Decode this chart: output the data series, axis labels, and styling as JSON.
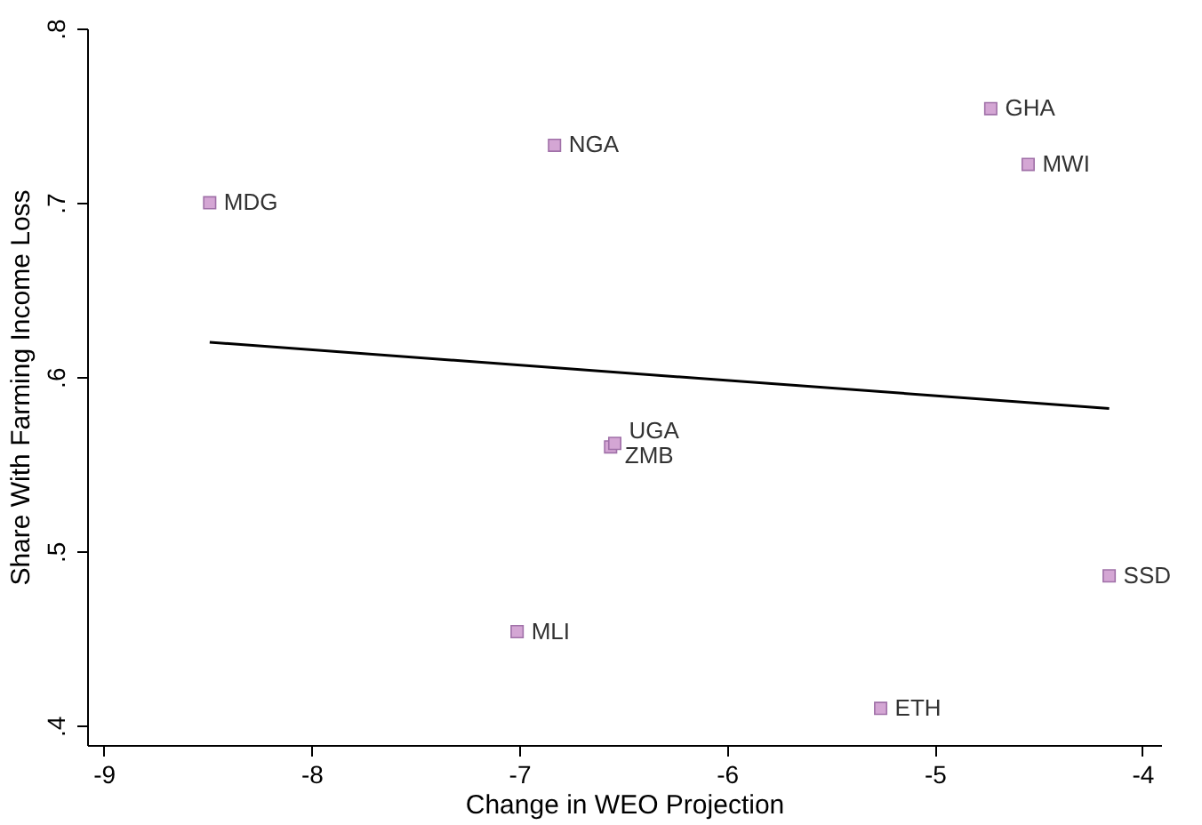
{
  "chart_data": {
    "type": "scatter",
    "xlabel": "Change in WEO Projection",
    "ylabel": "Share With Farming Income Loss",
    "xlim": [
      -9.08,
      -3.91
    ],
    "ylim": [
      0.389,
      0.8
    ],
    "xticks": [
      -9,
      -8,
      -7,
      -6,
      -5,
      -4
    ],
    "yticks": [
      {
        "value": 0.4,
        "label": ".4"
      },
      {
        "value": 0.5,
        "label": ".5"
      },
      {
        "value": 0.6,
        "label": ".6"
      },
      {
        "value": 0.7,
        "label": ".7"
      },
      {
        "value": 0.8,
        "label": ".8"
      }
    ],
    "grid": false,
    "series": [
      {
        "type": "scatter",
        "marker": "square",
        "color": "#d4a6d4",
        "x": [
          -8.49,
          -6.83,
          -4.73,
          -4.55,
          -6.56,
          -6.54,
          -4.16,
          -7.01,
          -5.26
        ],
        "values": [
          0.7,
          0.733,
          0.754,
          0.722,
          0.56,
          0.562,
          0.486,
          0.454,
          0.41
        ]
      },
      {
        "type": "line",
        "marker": "none",
        "line_style": "solid",
        "color": "#000000",
        "x": [
          -8.49,
          -4.16
        ],
        "values": [
          0.62,
          0.582
        ]
      }
    ],
    "annotations": [
      {
        "text": "MDG",
        "x": -8.49,
        "y": 0.7
      },
      {
        "text": "NGA",
        "x": -6.83,
        "y": 0.733
      },
      {
        "text": "GHA",
        "x": -4.73,
        "y": 0.754
      },
      {
        "text": "MWI",
        "x": -4.55,
        "y": 0.722
      },
      {
        "text": "ZMB",
        "x": -6.56,
        "y": 0.56
      },
      {
        "text": "UGA",
        "x": -6.54,
        "y": 0.562
      },
      {
        "text": "SSD",
        "x": -4.16,
        "y": 0.486
      },
      {
        "text": "MLI",
        "x": -7.01,
        "y": 0.454
      },
      {
        "text": "ETH",
        "x": -5.26,
        "y": 0.41
      }
    ]
  }
}
